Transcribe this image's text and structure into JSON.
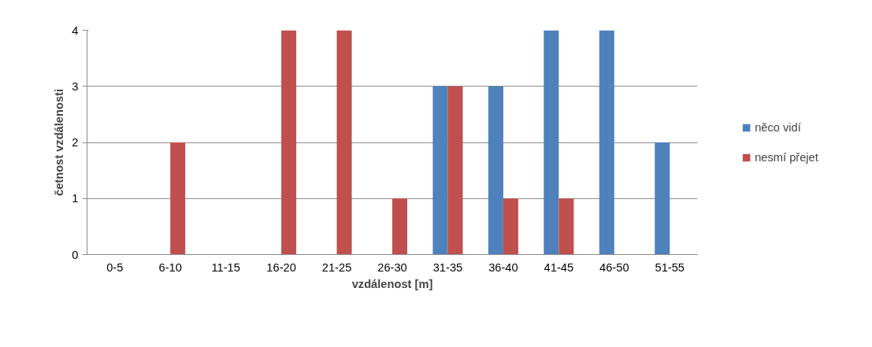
{
  "chart_data": {
    "type": "bar",
    "xlabel": "vzdálenost [m]",
    "ylabel": "četnost vzdálenosti",
    "categories": [
      "0-5",
      "6-10",
      "11-15",
      "16-20",
      "21-25",
      "26-30",
      "31-35",
      "36-40",
      "41-45",
      "46-50",
      "51-55"
    ],
    "series": [
      {
        "name": "něco vidí",
        "color": "#4f81bd",
        "values": [
          0,
          0,
          0,
          0,
          0,
          0,
          3,
          3,
          4,
          4,
          2
        ]
      },
      {
        "name": "nesmí přejet",
        "color": "#c0504d",
        "values": [
          0,
          2,
          0,
          4,
          4,
          1,
          3,
          1,
          1,
          0,
          0
        ]
      }
    ],
    "ylim": [
      0,
      4
    ],
    "yticks": [
      0,
      1,
      2,
      3,
      4
    ],
    "grid": "y",
    "legend": "right"
  }
}
